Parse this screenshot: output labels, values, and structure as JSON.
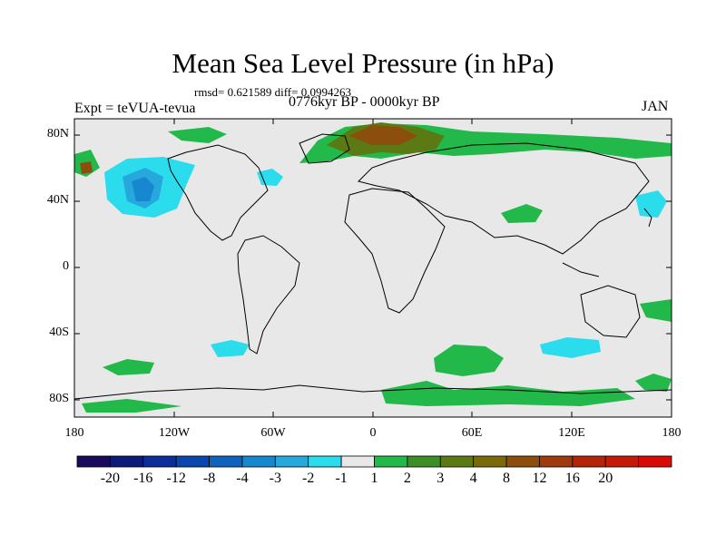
{
  "title": "Mean Sea Level Pressure (in hPa)",
  "stats": "rmsd= 0.621589 diff= 0.0994263",
  "experiment": "Expt = teVUA-tevua",
  "period": "0776kyr BP - 0000kyr BP",
  "month": "JAN",
  "lat_labels": [
    "80N",
    "40N",
    "0",
    "40S",
    "80S"
  ],
  "lon_labels": [
    "180",
    "120W",
    "60W",
    "0",
    "60E",
    "120E",
    "180"
  ],
  "colorbar": {
    "colors": [
      "#1a0a5c",
      "#0d1a7a",
      "#0c2e9a",
      "#0a46ad",
      "#0f63bd",
      "#1787cf",
      "#26a8dd",
      "#2bdcec",
      "#e8e8e8",
      "#22b84a",
      "#3e8e26",
      "#5c7a14",
      "#7a6a0a",
      "#8c4e0c",
      "#9e3a0c",
      "#b42408",
      "#c41a08",
      "#d80a06"
    ],
    "labels": [
      "-20",
      "-16",
      "-12",
      "-8",
      "-4",
      "-3",
      "-2",
      "-1",
      "1",
      "2",
      "3",
      "4",
      "8",
      "12",
      "16",
      "20"
    ]
  }
}
